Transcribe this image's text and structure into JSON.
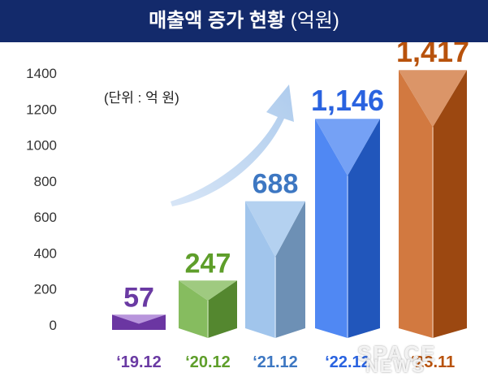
{
  "header": {
    "title": "매출액 증가 현황",
    "unit": "(억원)"
  },
  "unit_note": "(단위 : 억 원)",
  "watermark": {
    "line1": "SPACE",
    "line2": "NEWS"
  },
  "chart_data": {
    "type": "bar",
    "title": "매출액 증가 현황",
    "subtitle": "(억원)",
    "xlabel": "",
    "ylabel": "",
    "categories": [
      "‘19.12",
      "‘20.12",
      "‘21.12",
      "‘22.12",
      "‘23.11"
    ],
    "values": [
      57,
      247,
      688,
      1146,
      1417
    ],
    "value_labels": [
      "57",
      "247",
      "688",
      "1,146",
      "1,417"
    ],
    "yticks": [
      "0",
      "200",
      "400",
      "600",
      "800",
      "1000",
      "1200",
      "1400"
    ],
    "ylim": [
      0,
      1400
    ],
    "grid": false,
    "legend": "none",
    "colors": {
      "bars": [
        "#7e3fbf",
        "#6cad3c",
        "#8cb8e8",
        "#2a6ef0",
        "#c85c16"
      ],
      "label_text": [
        "#6a3aa3",
        "#5e9e2a",
        "#3d77c2",
        "#2a63e0",
        "#b8520c"
      ],
      "trend_arrow": "#aac9ec"
    }
  }
}
